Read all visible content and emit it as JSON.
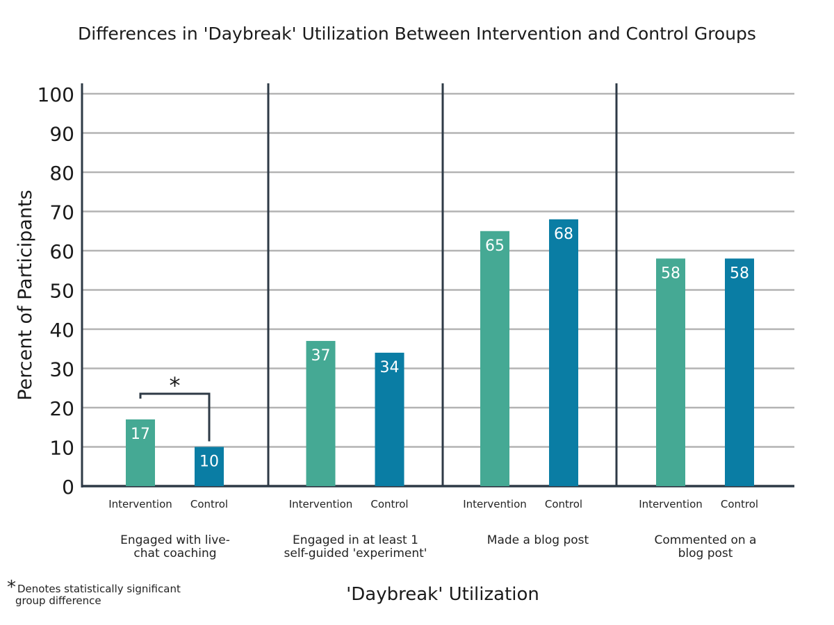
{
  "chart_data": {
    "type": "bar",
    "title": "Differences in 'Daybreak' Utilization Between Intervention and Control Groups",
    "xlabel": "'Daybreak' Utilization",
    "ylabel": "Percent of Participants",
    "ylim": [
      0,
      100
    ],
    "yticks": [
      "0",
      "10",
      "20",
      "30",
      "40",
      "50",
      "60",
      "70",
      "80",
      "90",
      "100"
    ],
    "grid": true,
    "series_labels": [
      "Intervention",
      "Control"
    ],
    "groups": [
      {
        "category_lines": [
          "Engaged with live-",
          "chat coaching"
        ],
        "values": [
          17,
          10
        ],
        "labels": [
          "17",
          "10"
        ],
        "significant": true
      },
      {
        "category_lines": [
          "Engaged in at least 1",
          "self-guided 'experiment'"
        ],
        "values": [
          37,
          34
        ],
        "labels": [
          "37",
          "34"
        ],
        "significant": false
      },
      {
        "category_lines": [
          "Made a blog post"
        ],
        "values": [
          65,
          68
        ],
        "labels": [
          "65",
          "68"
        ],
        "significant": false
      },
      {
        "category_lines": [
          "Commented on a",
          "blog post"
        ],
        "values": [
          58,
          58
        ],
        "labels": [
          "58",
          "58"
        ],
        "significant": false
      }
    ],
    "colors": {
      "intervention": "#45a994",
      "control": "#0a7da4",
      "grid": "#b3b3b3",
      "axis": "#2e3a46"
    },
    "significance_marker": "*"
  },
  "footnote": {
    "marker": "*",
    "line1": "Denotes statistically significant",
    "line2": "group difference"
  }
}
